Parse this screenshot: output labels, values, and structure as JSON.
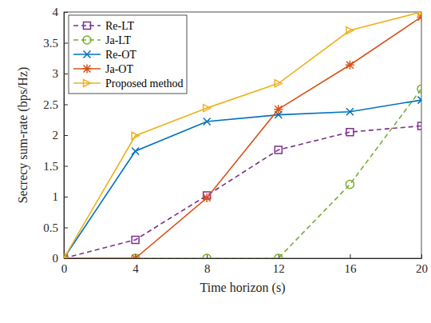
{
  "chart_data": {
    "type": "line",
    "x_label": "Time horizon (s)",
    "y_label": "Secrecy sum-rate (bps/Hz)",
    "x": [
      0,
      4,
      8,
      12,
      16,
      20
    ],
    "series": [
      {
        "name": "Re-LT",
        "color": "#7E2F8E",
        "marker": "square",
        "line_style": "dashed",
        "values": [
          0,
          0.3,
          1.02,
          1.76,
          2.05,
          2.15
        ]
      },
      {
        "name": "Ja-LT",
        "color": "#77AC30",
        "marker": "circle",
        "line_style": "dashed",
        "values": [
          0,
          0,
          0,
          0,
          1.2,
          2.75
        ]
      },
      {
        "name": "Re-OT",
        "color": "#0072BD",
        "marker": "x",
        "line_style": "solid",
        "values": [
          0,
          1.74,
          2.22,
          2.33,
          2.38,
          2.57
        ]
      },
      {
        "name": "Ja-OT",
        "color": "#D95319",
        "marker": "asterisk",
        "line_style": "solid",
        "values": [
          0,
          0,
          0.98,
          2.42,
          3.14,
          3.92
        ]
      },
      {
        "name": "Proposed method",
        "color": "#EDB120",
        "marker": "triangle-right",
        "line_style": "solid",
        "values": [
          0,
          1.99,
          2.44,
          2.84,
          3.7,
          4.0
        ]
      }
    ],
    "xlim": [
      0,
      20
    ],
    "xticks": [
      0,
      4,
      8,
      12,
      16,
      20
    ],
    "ylim": [
      0,
      4
    ],
    "yticks": [
      0,
      0.5,
      1,
      1.5,
      2,
      2.5,
      3,
      3.5,
      4
    ],
    "grid": false,
    "legend": "upper-left"
  }
}
